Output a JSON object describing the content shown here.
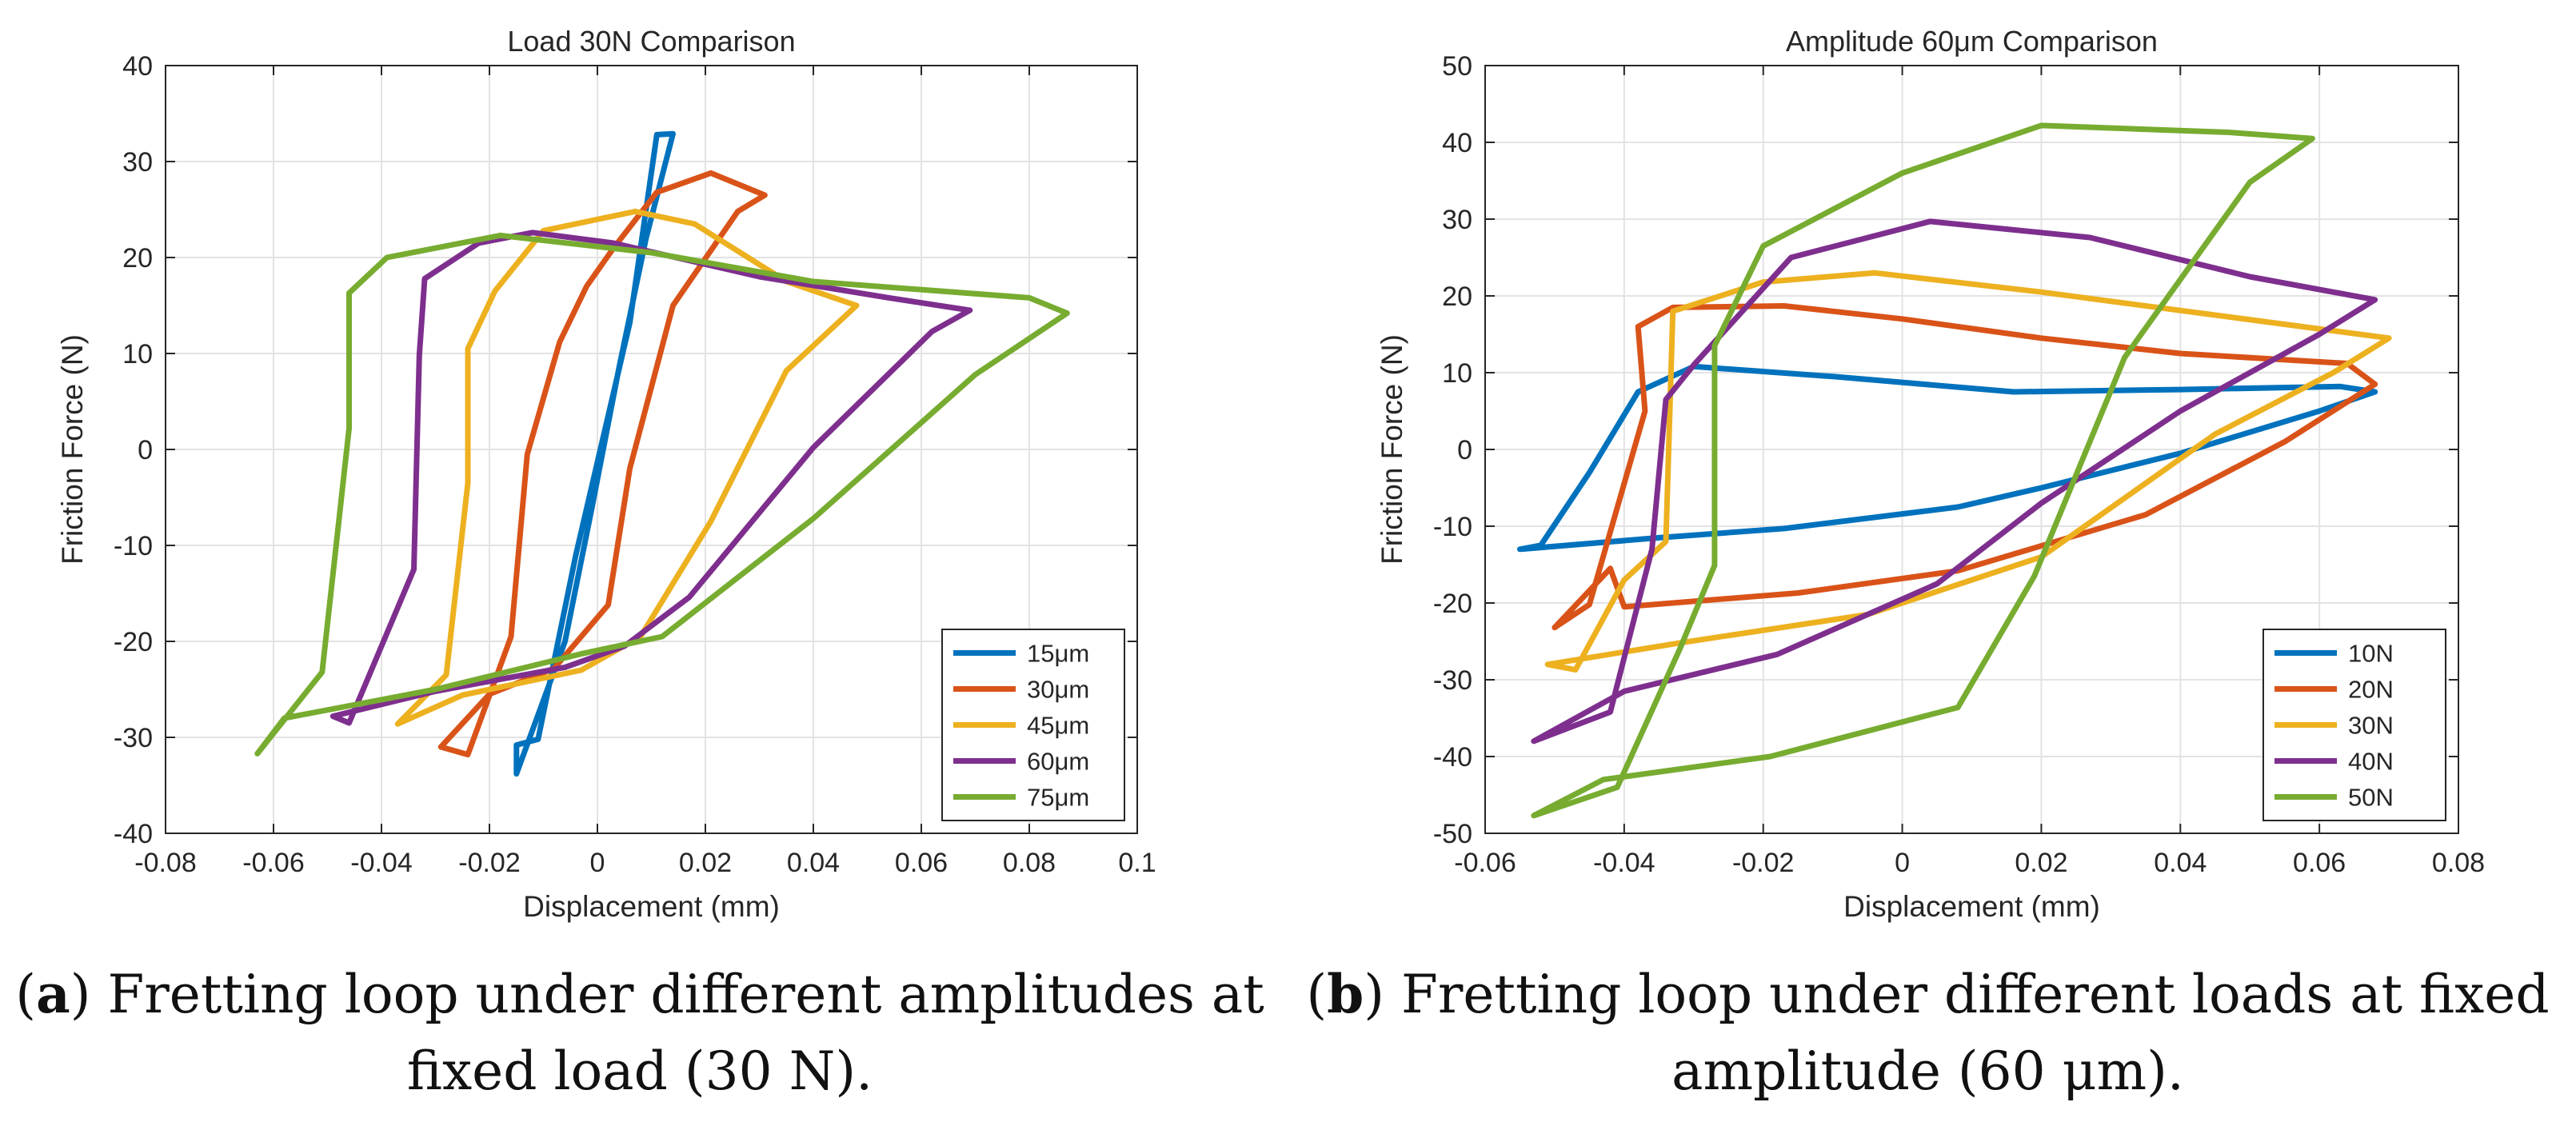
{
  "figure": {
    "captions": [
      {
        "label": "a",
        "text": "Fretting loop under different amplitudes at",
        "text2": "fixed load (30 N)."
      },
      {
        "label": "b",
        "text": "Fretting loop under different loads at fixed",
        "text2": "amplitude (60 μm)."
      }
    ]
  },
  "chart_data": [
    {
      "type": "line",
      "title": "Load 30N Comparison",
      "xlabel": "Displacement (mm)",
      "ylabel": "Friction Force (N)",
      "xlim": [
        -0.08,
        0.1
      ],
      "ylim": [
        -40,
        40
      ],
      "xticks": [
        -0.08,
        -0.06,
        -0.04,
        -0.02,
        0,
        0.02,
        0.04,
        0.06,
        0.08,
        0.1
      ],
      "xtick_labels": [
        "-0.08",
        "-0.06",
        "-0.04",
        "-0.02",
        "0",
        "0.02",
        "0.04",
        "0.06",
        "0.08",
        "0.1"
      ],
      "yticks": [
        -40,
        -30,
        -20,
        -10,
        0,
        10,
        20,
        30,
        40
      ],
      "ytick_labels": [
        "-40",
        "-30",
        "-20",
        "-10",
        "0",
        "10",
        "20",
        "30",
        "40"
      ],
      "grid": true,
      "legend_position": "bottom-right",
      "series": [
        {
          "name": "15μm",
          "color": "#0072BD",
          "points": [
            [
              -0.015,
              -33.8
            ],
            [
              -0.015,
              -30.8
            ],
            [
              -0.011,
              -30.2
            ],
            [
              -0.004,
              -11
            ],
            [
              0.006,
              13.2
            ],
            [
              0.011,
              32.8
            ],
            [
              0.014,
              32.9
            ],
            [
              0.009,
              22
            ],
            [
              0.004,
              8.5
            ],
            [
              -0.001,
              -6
            ],
            [
              -0.006,
              -20
            ],
            [
              -0.015,
              -33.8
            ]
          ]
        },
        {
          "name": "30μm",
          "color": "#D95319",
          "points": [
            [
              -0.029,
              -31
            ],
            [
              -0.024,
              -31.8
            ],
            [
              -0.016,
              -19.5
            ],
            [
              -0.013,
              -0.5
            ],
            [
              -0.007,
              11.2
            ],
            [
              -0.002,
              17
            ],
            [
              0.003,
              21
            ],
            [
              0.011,
              26.8
            ],
            [
              0.021,
              28.8
            ],
            [
              0.031,
              26.5
            ],
            [
              0.026,
              24.8
            ],
            [
              0.014,
              15
            ],
            [
              0.006,
              -2
            ],
            [
              0.002,
              -16.2
            ],
            [
              -0.008,
              -22.8
            ],
            [
              -0.02,
              -25.5
            ],
            [
              -0.029,
              -31
            ]
          ]
        },
        {
          "name": "45μm",
          "color": "#EDB120",
          "points": [
            [
              -0.037,
              -28.6
            ],
            [
              -0.028,
              -23.5
            ],
            [
              -0.024,
              -3.5
            ],
            [
              -0.024,
              10.5
            ],
            [
              -0.019,
              16.5
            ],
            [
              -0.01,
              22.8
            ],
            [
              0.007,
              24.8
            ],
            [
              0.018,
              23.5
            ],
            [
              0.035,
              17.5
            ],
            [
              0.048,
              15
            ],
            [
              0.035,
              8.2
            ],
            [
              0.021,
              -7.5
            ],
            [
              0.008,
              -19.5
            ],
            [
              -0.003,
              -23
            ],
            [
              -0.025,
              -25.6
            ],
            [
              -0.037,
              -28.6
            ]
          ]
        },
        {
          "name": "60μm",
          "color": "#7E2F8E",
          "points": [
            [
              -0.049,
              -27.8
            ],
            [
              -0.046,
              -28.5
            ],
            [
              -0.034,
              -12.5
            ],
            [
              -0.033,
              9.8
            ],
            [
              -0.032,
              17.8
            ],
            [
              -0.022,
              21.5
            ],
            [
              -0.012,
              22.6
            ],
            [
              0.003,
              21.5
            ],
            [
              0.03,
              18
            ],
            [
              0.054,
              15.8
            ],
            [
              0.069,
              14.5
            ],
            [
              0.062,
              12.3
            ],
            [
              0.04,
              0.2
            ],
            [
              0.017,
              -15.4
            ],
            [
              0.005,
              -20.5
            ],
            [
              -0.006,
              -22.7
            ],
            [
              -0.03,
              -25.2
            ],
            [
              -0.049,
              -27.8
            ]
          ]
        },
        {
          "name": "75μm",
          "color": "#77AC30",
          "points": [
            [
              -0.063,
              -31.7
            ],
            [
              -0.051,
              -23.2
            ],
            [
              -0.046,
              2.2
            ],
            [
              -0.046,
              16.3
            ],
            [
              -0.039,
              20
            ],
            [
              -0.018,
              22.3
            ],
            [
              0.01,
              20.5
            ],
            [
              0.04,
              17.5
            ],
            [
              0.08,
              15.8
            ],
            [
              0.087,
              14.2
            ],
            [
              0.07,
              7.8
            ],
            [
              0.04,
              -7.2
            ],
            [
              0.012,
              -19.5
            ],
            [
              -0.003,
              -21.3
            ],
            [
              -0.03,
              -25
            ],
            [
              -0.058,
              -28
            ],
            [
              -0.063,
              -31.7
            ]
          ]
        }
      ]
    },
    {
      "type": "line",
      "title": "Amplitude 60μm Comparison",
      "xlabel": "Displacement (mm)",
      "ylabel": "Friction Force (N)",
      "xlim": [
        -0.06,
        0.08
      ],
      "ylim": [
        -50,
        50
      ],
      "xticks": [
        -0.06,
        -0.04,
        -0.02,
        0,
        0.02,
        0.04,
        0.06,
        0.08
      ],
      "xtick_labels": [
        "-0.06",
        "-0.04",
        "-0.02",
        "0",
        "0.02",
        "0.04",
        "0.06",
        "0.08"
      ],
      "yticks": [
        -50,
        -40,
        -30,
        -20,
        -10,
        0,
        10,
        20,
        30,
        40,
        50
      ],
      "ytick_labels": [
        "-50",
        "-40",
        "-30",
        "-20",
        "-10",
        "0",
        "10",
        "20",
        "30",
        "40",
        "50"
      ],
      "grid": true,
      "legend_position": "bottom-right",
      "series": [
        {
          "name": "10N",
          "color": "#0072BD",
          "points": [
            [
              -0.055,
              -13
            ],
            [
              -0.052,
              -12.5
            ],
            [
              -0.045,
              -3
            ],
            [
              -0.038,
              7.5
            ],
            [
              -0.03,
              10.8
            ],
            [
              -0.01,
              9.5
            ],
            [
              0.016,
              7.5
            ],
            [
              0.04,
              7.8
            ],
            [
              0.063,
              8.2
            ],
            [
              0.068,
              7.5
            ],
            [
              0.06,
              5
            ],
            [
              0.04,
              -0.5
            ],
            [
              0.02,
              -5
            ],
            [
              0.008,
              -7.5
            ],
            [
              -0.017,
              -10.3
            ],
            [
              -0.035,
              -11.5
            ],
            [
              -0.055,
              -13
            ]
          ]
        },
        {
          "name": "20N",
          "color": "#D95319",
          "points": [
            [
              -0.05,
              -23.2
            ],
            [
              -0.045,
              -20.2
            ],
            [
              -0.037,
              5
            ],
            [
              -0.038,
              16
            ],
            [
              -0.033,
              18.5
            ],
            [
              -0.017,
              18.7
            ],
            [
              0,
              17
            ],
            [
              0.02,
              14.5
            ],
            [
              0.04,
              12.5
            ],
            [
              0.064,
              11.2
            ],
            [
              0.068,
              8.5
            ],
            [
              0.055,
              1
            ],
            [
              0.035,
              -8.5
            ],
            [
              0.008,
              -15.8
            ],
            [
              -0.015,
              -18.7
            ],
            [
              -0.04,
              -20.5
            ],
            [
              -0.042,
              -15.5
            ],
            [
              -0.05,
              -23.2
            ]
          ]
        },
        {
          "name": "30N",
          "color": "#EDB120",
          "points": [
            [
              -0.051,
              -28
            ],
            [
              -0.047,
              -28.7
            ],
            [
              -0.04,
              -17
            ],
            [
              -0.034,
              -12
            ],
            [
              -0.033,
              18
            ],
            [
              -0.02,
              21.8
            ],
            [
              -0.004,
              23
            ],
            [
              0.02,
              20.5
            ],
            [
              0.045,
              17.5
            ],
            [
              0.07,
              14.5
            ],
            [
              0.062,
              10
            ],
            [
              0.045,
              2
            ],
            [
              0.02,
              -14
            ],
            [
              -0.005,
              -21.5
            ],
            [
              -0.032,
              -25.2
            ],
            [
              -0.051,
              -28
            ]
          ]
        },
        {
          "name": "40N",
          "color": "#7E2F8E",
          "points": [
            [
              -0.053,
              -38
            ],
            [
              -0.042,
              -34.2
            ],
            [
              -0.036,
              -13
            ],
            [
              -0.034,
              6.5
            ],
            [
              -0.03,
              11
            ],
            [
              -0.022,
              19
            ],
            [
              -0.016,
              25
            ],
            [
              0.004,
              29.7
            ],
            [
              0.027,
              27.6
            ],
            [
              0.05,
              22.5
            ],
            [
              0.068,
              19.5
            ],
            [
              0.06,
              15
            ],
            [
              0.04,
              5
            ],
            [
              0.02,
              -7
            ],
            [
              0.005,
              -17.5
            ],
            [
              -0.018,
              -26.7
            ],
            [
              -0.04,
              -31.5
            ],
            [
              -0.053,
              -38
            ]
          ]
        },
        {
          "name": "50N",
          "color": "#77AC30",
          "points": [
            [
              -0.053,
              -47.7
            ],
            [
              -0.041,
              -44
            ],
            [
              -0.032,
              -26
            ],
            [
              -0.027,
              -15.1
            ],
            [
              -0.027,
              13.5
            ],
            [
              -0.02,
              26.5
            ],
            [
              0,
              36
            ],
            [
              0.02,
              42.2
            ],
            [
              0.047,
              41.3
            ],
            [
              0.059,
              40.5
            ],
            [
              0.05,
              34.8
            ],
            [
              0.032,
              12
            ],
            [
              0.019,
              -16.5
            ],
            [
              0.008,
              -33.6
            ],
            [
              -0.019,
              -40
            ],
            [
              -0.043,
              -43
            ],
            [
              -0.053,
              -47.7
            ]
          ]
        }
      ]
    }
  ]
}
